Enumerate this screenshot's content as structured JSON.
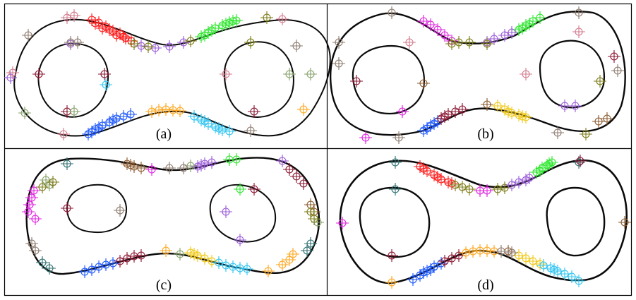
{
  "panels": [
    {
      "id": "a",
      "label": "(a)"
    },
    {
      "id": "b",
      "label": "(b)"
    },
    {
      "id": "c",
      "label": "(c)"
    },
    {
      "id": "d",
      "label": "(d)"
    }
  ],
  "colors": {
    "red": "#ff1a1a",
    "green": "#2ee62e",
    "blue": "#1a55ff",
    "orange": "#ffa51a",
    "cyan": "#2ec4f0",
    "magenta": "#e01ee0",
    "purple": "#9a5ad8",
    "maroon": "#8a1430",
    "olive": "#7a7a14",
    "brown": "#8a5a2e",
    "teal": "#2e6e6e",
    "pink": "#d27a8c",
    "gold": "#f0c814",
    "violet": "#c878f0",
    "sage": "#86a06a",
    "gray": "#8c7a6e"
  },
  "marker_icon": "crosshair-circle-icon"
}
